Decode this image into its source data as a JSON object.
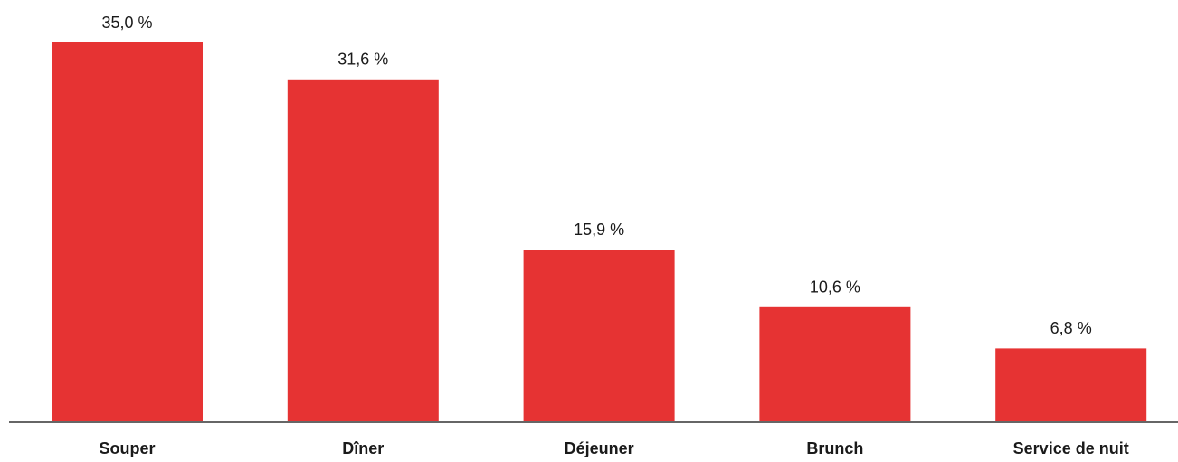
{
  "chart_data": {
    "type": "bar",
    "categories": [
      "Souper",
      "Dîner",
      "Déjeuner",
      "Brunch",
      "Service de nuit"
    ],
    "values": [
      35.0,
      31.6,
      15.9,
      10.6,
      6.8
    ],
    "value_labels": [
      "35,0 %",
      "31,6 %",
      "15,9 %",
      "10,6 %",
      "6,8 %"
    ],
    "color": "#e63333",
    "ylim": [
      0,
      35
    ]
  }
}
